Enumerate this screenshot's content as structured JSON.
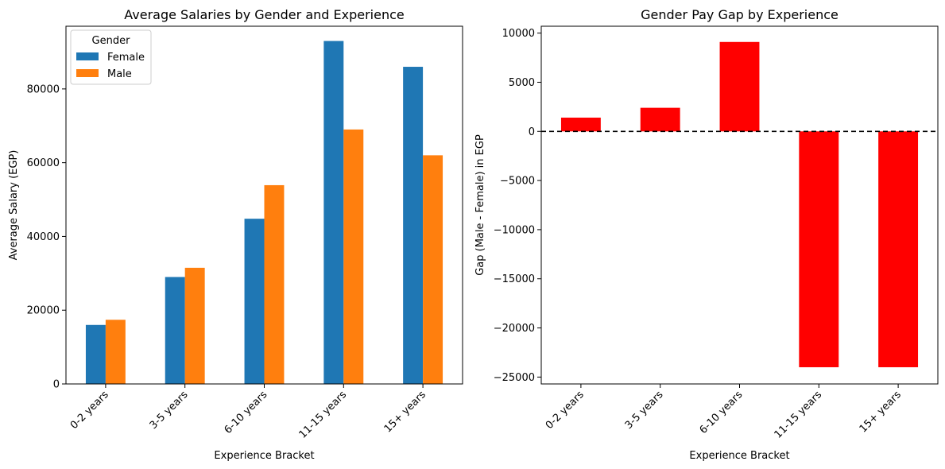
{
  "chart_data": [
    {
      "type": "bar",
      "title": "Average Salaries by Gender and Experience",
      "xlabel": "Experience Bracket",
      "ylabel": "Average Salary (EGP)",
      "categories": [
        "0-2 years",
        "3-5 years",
        "6-10 years",
        "11-15 years",
        "15+ years"
      ],
      "ylim": [
        0,
        97000
      ],
      "yticks": [
        0,
        20000,
        40000,
        60000,
        80000
      ],
      "legend": {
        "title": "Gender",
        "placement": "top-left"
      },
      "series": [
        {
          "name": "Female",
          "color": "#1f77b4",
          "values": [
            16000,
            29000,
            44800,
            93000,
            86000
          ]
        },
        {
          "name": "Male",
          "color": "#ff7f0e",
          "values": [
            17400,
            31500,
            53900,
            69000,
            62000
          ]
        }
      ],
      "grid": false
    },
    {
      "type": "bar",
      "title": "Gender Pay Gap by Experience",
      "xlabel": "Experience Bracket",
      "ylabel": "Gap (Male - Female) in EGP",
      "categories": [
        "0-2 years",
        "3-5 years",
        "6-10 years",
        "11-15 years",
        "15+ years"
      ],
      "ylim": [
        -25700,
        10700
      ],
      "yticks": [
        -25000,
        -20000,
        -15000,
        -10000,
        -5000,
        0,
        5000,
        10000
      ],
      "color": "#ff0000",
      "values": [
        1400,
        2400,
        9100,
        -24000,
        -24000
      ],
      "reference_line": {
        "y": 0,
        "style": "dashed",
        "color": "#000000"
      },
      "grid": false
    }
  ]
}
